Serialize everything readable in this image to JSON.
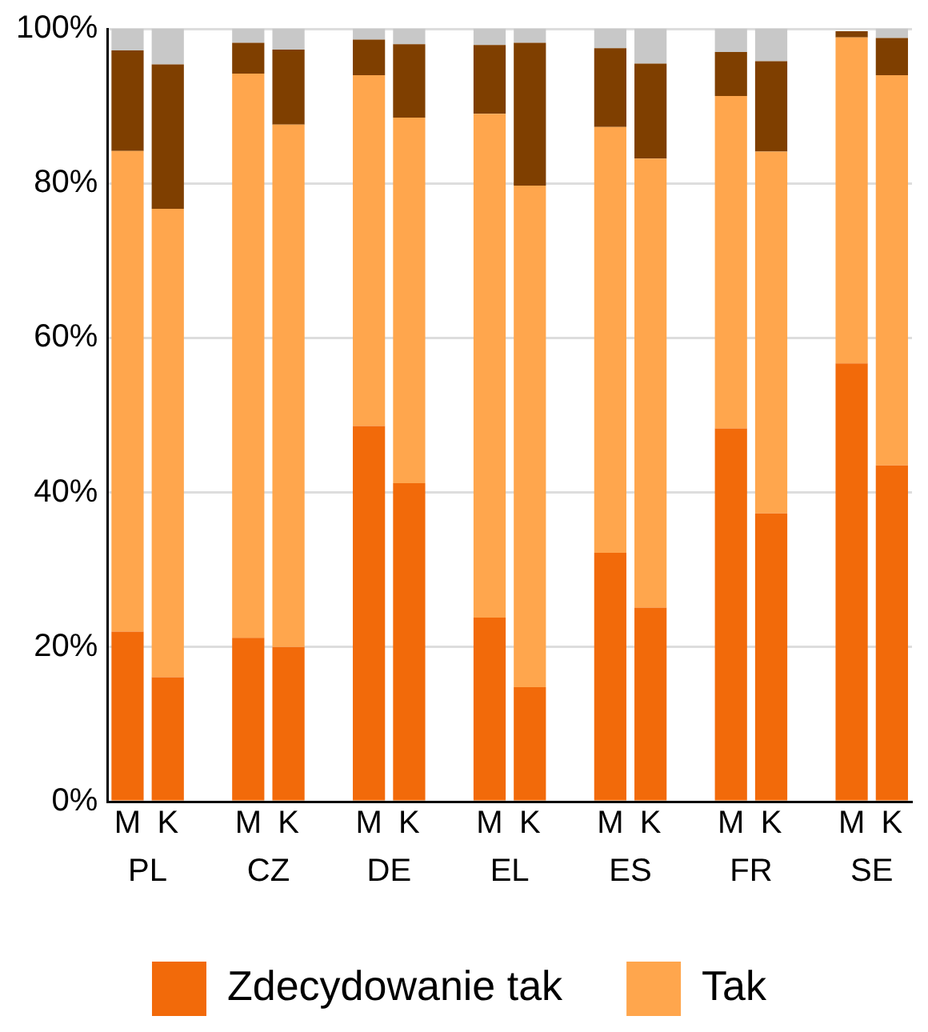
{
  "chart_data": {
    "type": "bar",
    "stacked": true,
    "categories": [
      "M",
      "K",
      null,
      "M",
      "K",
      null,
      "M",
      "K",
      null,
      "M",
      "K",
      null,
      "M",
      "K",
      null,
      "M",
      "K",
      null,
      "M",
      "K"
    ],
    "series": [
      {
        "name": "Zdecydowanie tak",
        "color": "#f26a0a",
        "values": [
          22,
          16.1,
          null,
          21.2,
          20,
          null,
          48.6,
          41.2,
          null,
          23.8,
          14.8,
          null,
          32.2,
          25.1,
          null,
          48.3,
          37.3,
          null,
          56.7,
          43.5
        ]
      },
      {
        "name": "Tak",
        "color": "#ffa64d",
        "values": [
          62.2,
          60.6,
          null,
          73,
          67.6,
          null,
          45.4,
          47.3,
          null,
          65.2,
          64.9,
          null,
          55.1,
          58.1,
          null,
          43,
          46.8,
          null,
          42.2,
          50.5
        ]
      },
      {
        "color": "#7f3f00",
        "values": [
          13,
          18.7,
          null,
          4,
          9.7,
          null,
          4.6,
          9.5,
          null,
          8.9,
          18.5,
          null,
          10.2,
          12.3,
          null,
          5.7,
          11.7,
          null,
          0.8,
          4.8
        ]
      },
      {
        "color": "#c8c8c8",
        "values": [
          2.8,
          4.6,
          null,
          1.8,
          2.7,
          null,
          1.4,
          2,
          null,
          2.1,
          1.8,
          null,
          2.5,
          4.5,
          null,
          3,
          4.2,
          null,
          null,
          1.2
        ]
      }
    ],
    "annotations": [
      "PL",
      "CZ",
      "DE",
      "EL",
      "ES",
      "FR",
      "SE"
    ],
    "ylim": [
      0,
      100
    ],
    "yticks": [
      {
        "value": 0,
        "label": "0%"
      },
      {
        "value": 20,
        "label": "20%"
      },
      {
        "value": 40,
        "label": "40%"
      },
      {
        "value": 60,
        "label": "60%"
      },
      {
        "value": 80,
        "label": "80%"
      },
      {
        "value": 100,
        "label": "100%"
      }
    ],
    "grid": "y",
    "legend": "bottom"
  }
}
